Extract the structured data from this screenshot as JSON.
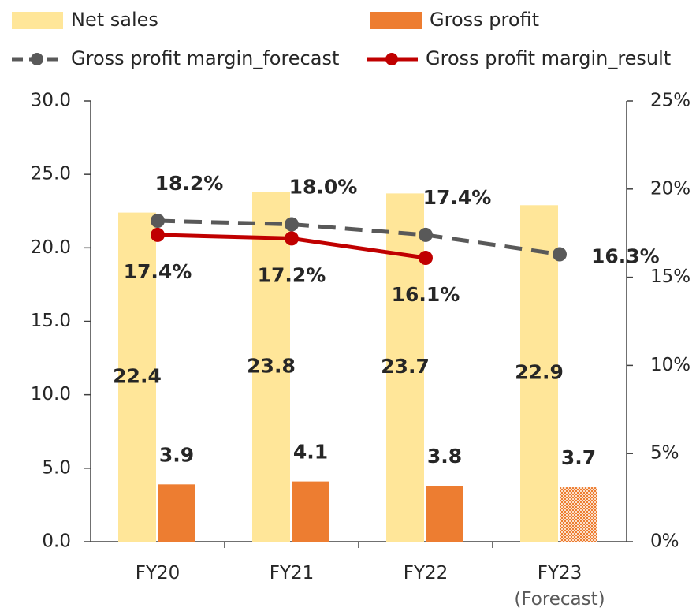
{
  "chart_data": {
    "type": "bar_line",
    "categories": [
      "FY20",
      "FY21",
      "FY22",
      "FY23\n(Forecast)"
    ],
    "series": [
      {
        "name": "Net sales",
        "type": "bar",
        "color": "#ffe699",
        "values": [
          22.4,
          23.8,
          23.7,
          22.9
        ]
      },
      {
        "name": "Gross profit",
        "type": "bar",
        "color": "#ed7d31",
        "values": [
          3.9,
          4.1,
          3.8,
          3.7
        ],
        "hatched": [
          false,
          false,
          false,
          true
        ]
      },
      {
        "name": "Gross profit margin_forecast",
        "type": "line",
        "axis": "y2",
        "color": "#595959",
        "dashed": true,
        "values": [
          18.2,
          18.0,
          17.4,
          16.3
        ],
        "value_labels": [
          "18.2%",
          "18.0%",
          "17.4%",
          "16.3%"
        ]
      },
      {
        "name": "Gross profit margin_result",
        "type": "line",
        "axis": "y2",
        "color": "#c00000",
        "dashed": false,
        "values": [
          17.4,
          17.2,
          16.1,
          null
        ],
        "value_labels": [
          "17.4%",
          "17.2%",
          "16.1%",
          null
        ]
      }
    ],
    "ylim": [
      0,
      30
    ],
    "yticks": [
      {
        "value": 0,
        "label": "0.0"
      },
      {
        "value": 5,
        "label": "5.0"
      },
      {
        "value": 10,
        "label": "10.0"
      },
      {
        "value": 15,
        "label": "15.0"
      },
      {
        "value": 20,
        "label": "20.0"
      },
      {
        "value": 25,
        "label": "25.0"
      },
      {
        "value": 30,
        "label": "30.0"
      }
    ],
    "y2lim": [
      0,
      25
    ],
    "y2ticks": [
      {
        "value": 0,
        "label": "0%"
      },
      {
        "value": 5,
        "label": "5%"
      },
      {
        "value": 10,
        "label": "10%"
      },
      {
        "value": 15,
        "label": "15%"
      },
      {
        "value": 20,
        "label": "20%"
      },
      {
        "value": 25,
        "label": "25%"
      }
    ],
    "grid": false
  }
}
